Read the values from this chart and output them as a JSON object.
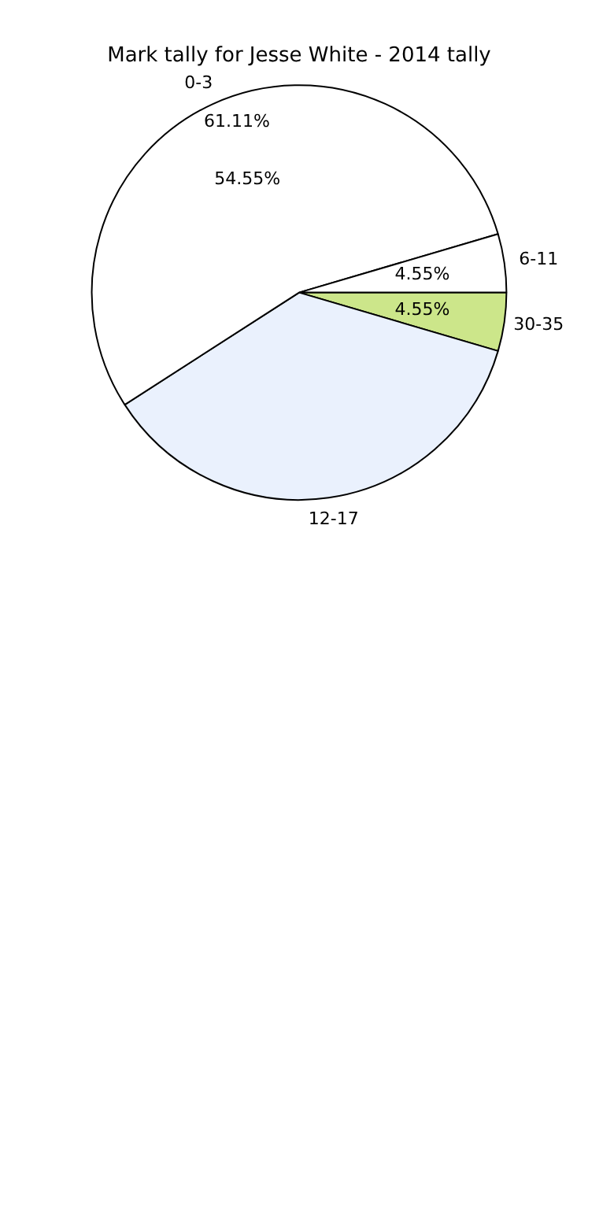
{
  "chart_data": {
    "type": "pie",
    "title": "Mark tally for Jesse White - 2014 tally",
    "categories": [
      "30-35",
      "12-17",
      "0-3",
      "6-11"
    ],
    "values": [
      4.55,
      36.35,
      54.55,
      4.55
    ],
    "colors": [
      "#cce68a",
      "#eaf1fd",
      "#ffffff",
      "#ffffff"
    ],
    "value_labels": [
      "4.55%",
      null,
      "54.55%",
      "4.55%"
    ],
    "annotations": [
      "61.11%"
    ],
    "legend": false
  }
}
